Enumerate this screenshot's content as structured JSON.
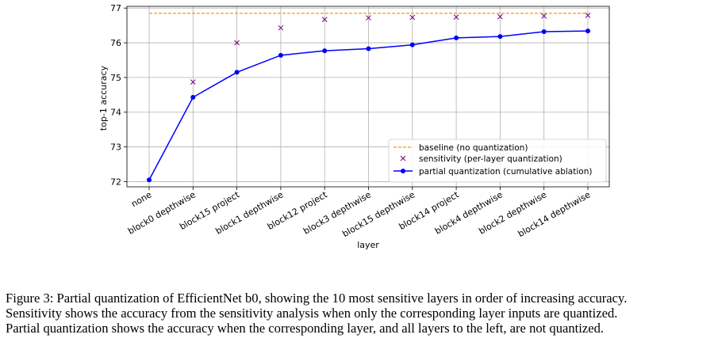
{
  "chart_data": {
    "type": "line",
    "categories": [
      "none",
      "block0 depthwise",
      "block15 project",
      "block1 depthwise",
      "block12 project",
      "block3 depthwise",
      "block15 depthwise",
      "block14 project",
      "block4 depthwise",
      "block2 depthwise",
      "block14 depthwise"
    ],
    "baseline": {
      "name": "baseline (no quantization)",
      "value": 76.85,
      "color": "#ff9900"
    },
    "series": [
      {
        "name": "sensitivity (per-layer quantization)",
        "marker": "x",
        "color": "#800080",
        "values": [
          null,
          74.87,
          76.0,
          76.43,
          76.67,
          76.72,
          76.73,
          76.74,
          76.75,
          76.77,
          76.79
        ]
      },
      {
        "name": "partial quantization (cumulative ablation)",
        "marker": "o",
        "color": "#0000ff",
        "values": [
          72.05,
          74.43,
          75.15,
          75.64,
          75.77,
          75.83,
          75.94,
          76.14,
          76.18,
          76.32,
          76.34
        ]
      }
    ],
    "xlabel": "layer",
    "ylabel": "top-1 accuracy",
    "ylim": [
      71.85,
      77.05
    ],
    "yticks": [
      72,
      73,
      74,
      75,
      76,
      77
    ],
    "grid": true,
    "legend": "lower-right"
  },
  "caption": [
    "Figure 3: Partial quantization of EfficientNet b0, showing the 10 most sensitive layers in order of increasing accuracy.",
    "Sensitivity shows the accuracy from the sensitivity analysis when only the corresponding layer inputs are quantized.",
    "Partial quantization shows the accuracy when the corresponding layer, and all layers to the left, are not quantized."
  ]
}
